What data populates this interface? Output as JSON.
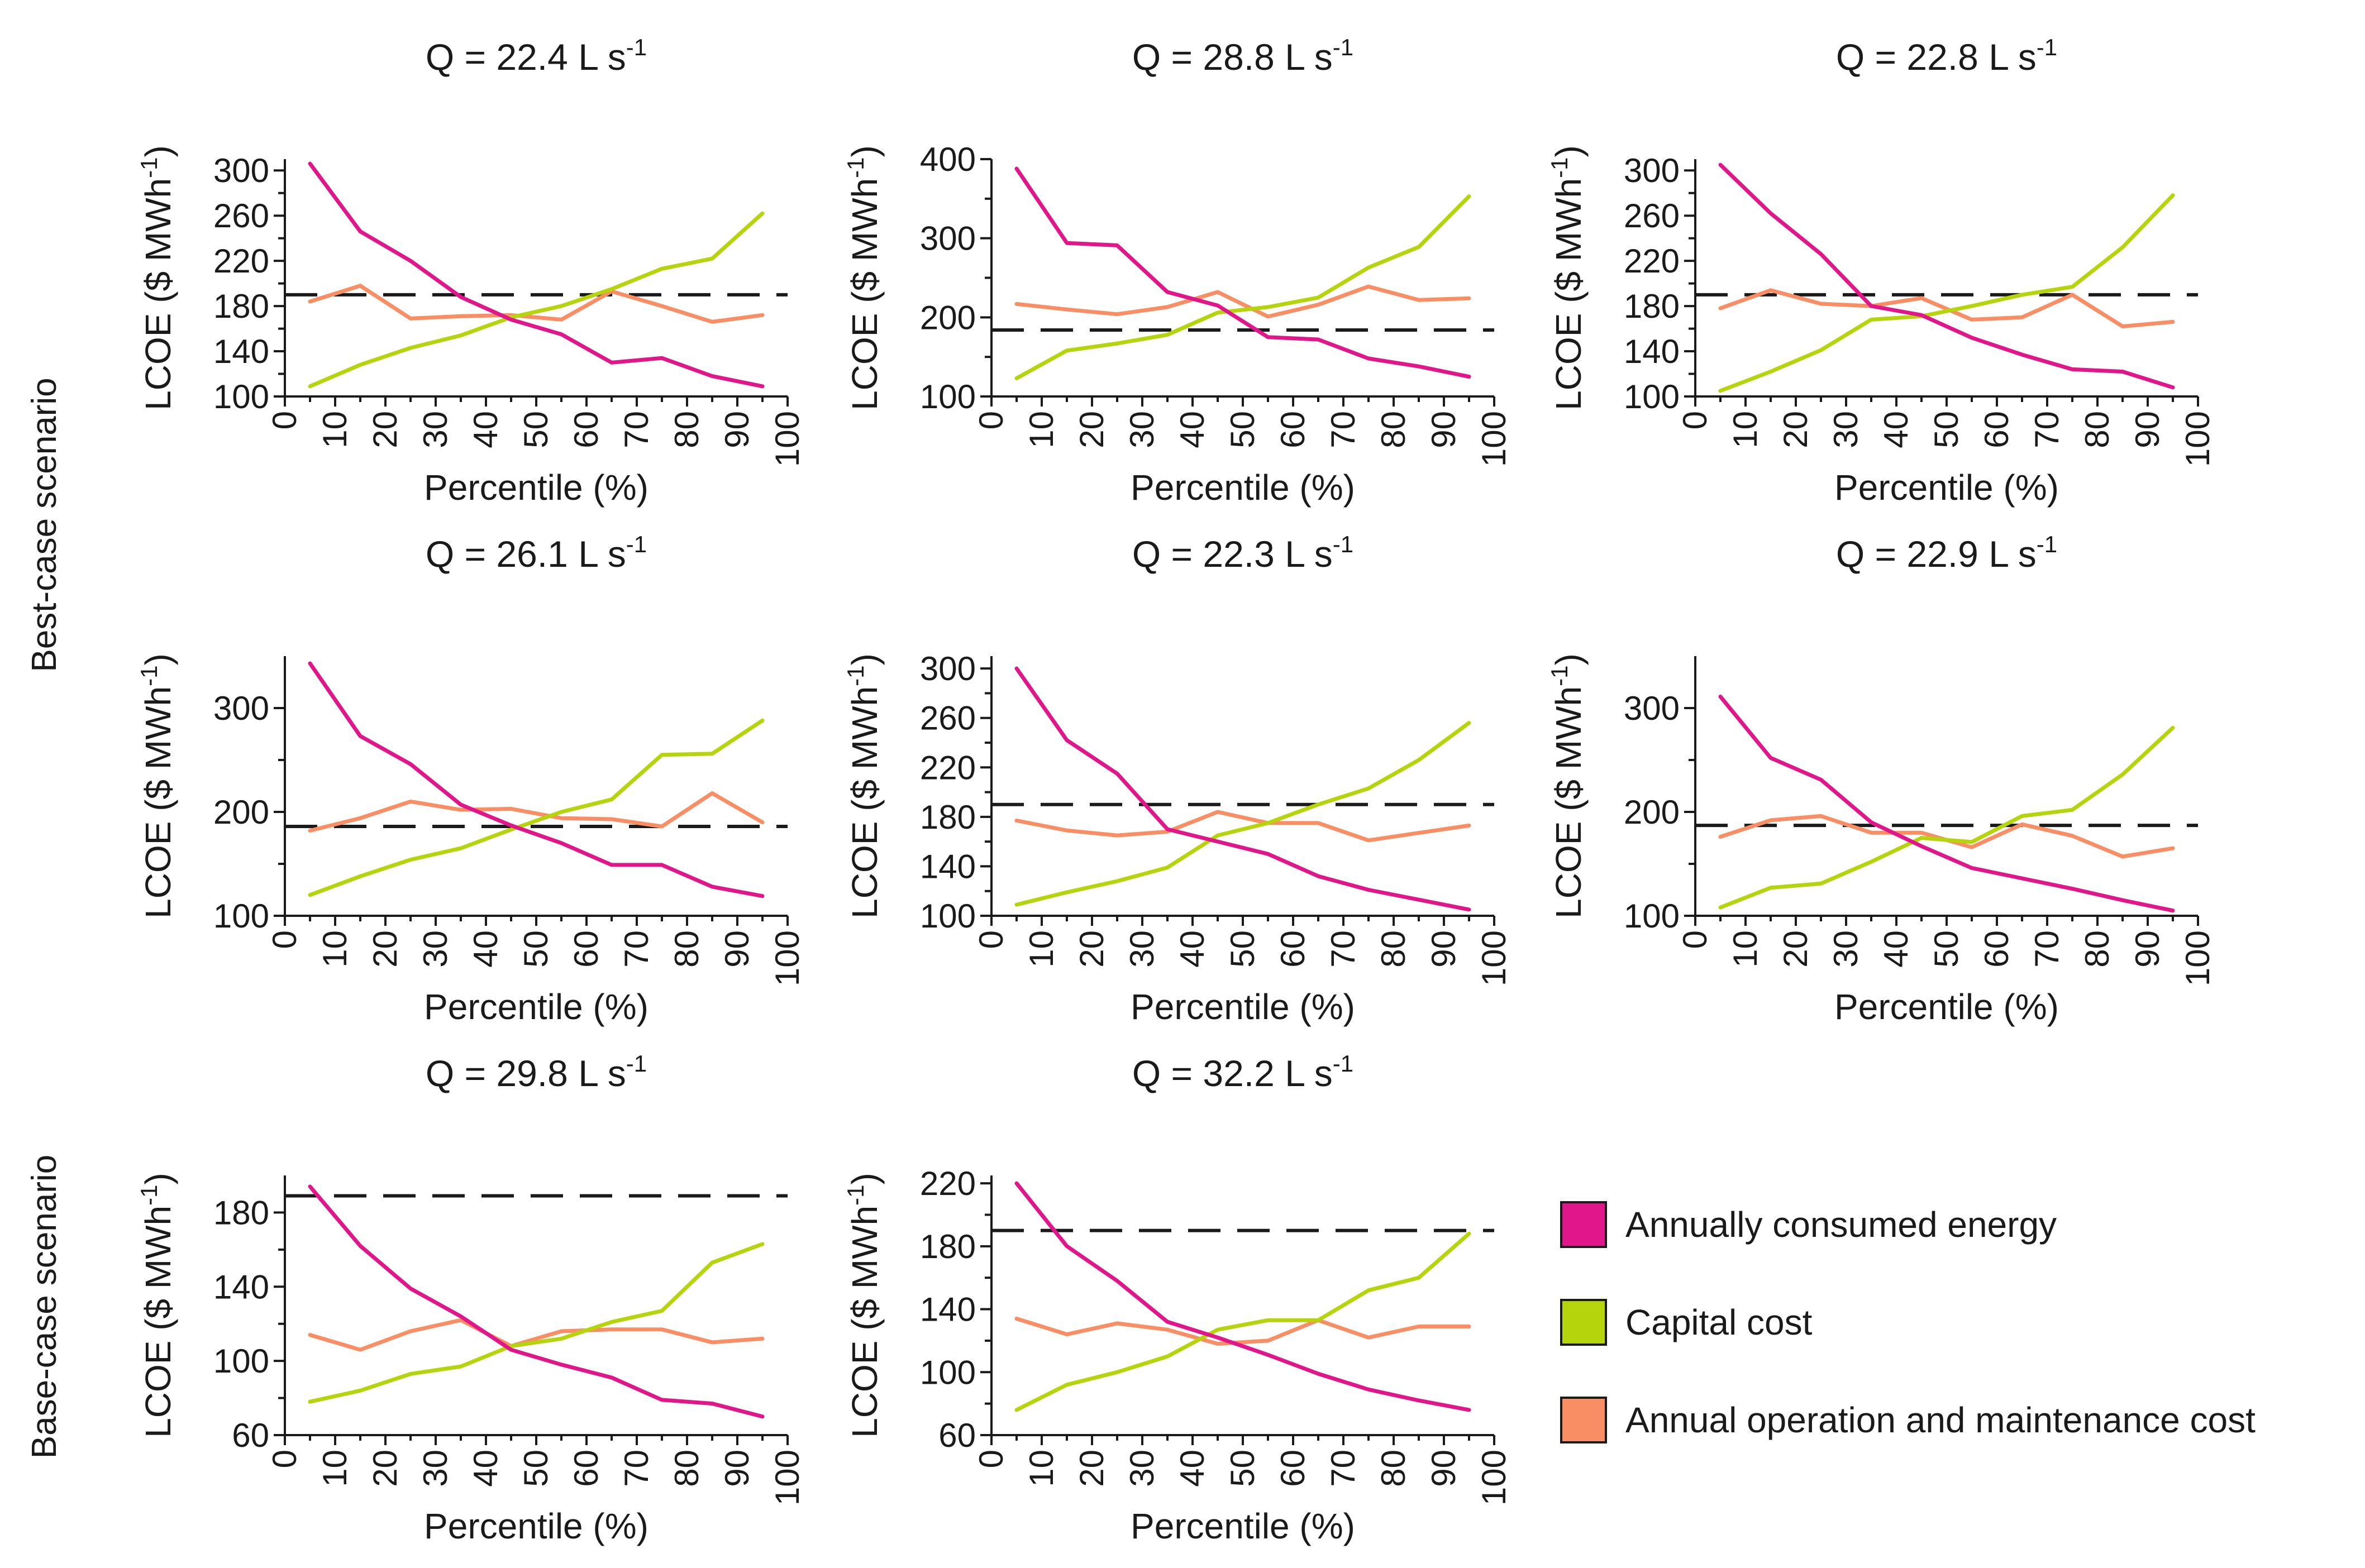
{
  "colors": {
    "energy": "#e0168a",
    "capital": "#b5d40c",
    "om": "#f98d64",
    "reference": "#1a1a1a",
    "axis": "#1a1a1a"
  },
  "scenario_labels": [
    "Best-case scenario",
    "Base-case scenario"
  ],
  "legend": [
    {
      "key": "energy",
      "label": "Annually consumed energy"
    },
    {
      "key": "capital",
      "label": "Capital cost"
    },
    {
      "key": "om",
      "label": "Annual operation and maintenance cost"
    }
  ],
  "chart_data": [
    {
      "type": "line",
      "title_main": "Q = 22.4 L s",
      "title_sup": "-1",
      "xlabel": "Percentile (%)",
      "ylabel_main": "LCOE ($ MWh",
      "ylabel_sup": "-1",
      "ylabel_end": ")",
      "xlim": [
        0,
        100
      ],
      "xticks": [
        0,
        10,
        20,
        30,
        40,
        50,
        60,
        70,
        80,
        90,
        100
      ],
      "ylim": [
        100,
        310
      ],
      "yticks": [
        100,
        140,
        180,
        220,
        260,
        300
      ],
      "x": [
        5,
        15,
        25,
        35,
        45,
        55,
        65,
        75,
        85,
        95
      ],
      "reference": 190,
      "series": [
        {
          "key": "energy",
          "values": [
            306,
            246,
            220,
            188,
            168,
            155,
            130,
            134,
            118,
            109
          ]
        },
        {
          "key": "capital",
          "values": [
            109,
            128,
            143,
            154,
            170,
            180,
            195,
            213,
            222,
            262
          ]
        },
        {
          "key": "om",
          "values": [
            184,
            198,
            169,
            171,
            172,
            168,
            193,
            180,
            166,
            172
          ]
        }
      ]
    },
    {
      "type": "line",
      "title_main": "Q = 28.8 L s",
      "title_sup": "-1",
      "xlabel": "Percentile (%)",
      "ylabel_main": "LCOE ($ MWh",
      "ylabel_sup": "-1",
      "ylabel_end": ")",
      "xlim": [
        0,
        100
      ],
      "xticks": [
        0,
        10,
        20,
        30,
        40,
        50,
        60,
        70,
        80,
        90,
        100
      ],
      "ylim": [
        100,
        400
      ],
      "yticks": [
        100,
        200,
        300,
        400
      ],
      "x": [
        5,
        15,
        25,
        35,
        45,
        55,
        65,
        75,
        85,
        95
      ],
      "reference": 184,
      "series": [
        {
          "key": "energy",
          "values": [
            388,
            294,
            291,
            232,
            215,
            175,
            172,
            148,
            138,
            125
          ]
        },
        {
          "key": "capital",
          "values": [
            123,
            158,
            167,
            178,
            206,
            213,
            225,
            263,
            289,
            353
          ]
        },
        {
          "key": "om",
          "values": [
            217,
            210,
            204,
            213,
            232,
            201,
            216,
            239,
            222,
            224
          ]
        }
      ]
    },
    {
      "type": "line",
      "title_main": "Q = 22.8 L s",
      "title_sup": "-1",
      "xlabel": "Percentile (%)",
      "ylabel_main": "LCOE ($ MWh",
      "ylabel_sup": "-1",
      "ylabel_end": ")",
      "xlim": [
        0,
        100
      ],
      "xticks": [
        0,
        10,
        20,
        30,
        40,
        50,
        60,
        70,
        80,
        90,
        100
      ],
      "ylim": [
        100,
        310
      ],
      "yticks": [
        100,
        140,
        180,
        220,
        260,
        300
      ],
      "x": [
        5,
        15,
        25,
        35,
        45,
        55,
        65,
        75,
        85,
        95
      ],
      "reference": 190,
      "series": [
        {
          "key": "energy",
          "values": [
            305,
            262,
            226,
            180,
            172,
            152,
            137,
            124,
            122,
            108
          ]
        },
        {
          "key": "capital",
          "values": [
            105,
            122,
            141,
            168,
            171,
            180,
            190,
            197,
            232,
            278
          ]
        },
        {
          "key": "om",
          "values": [
            178,
            194,
            182,
            180,
            187,
            168,
            170,
            190,
            162,
            166
          ]
        }
      ]
    },
    {
      "type": "line",
      "title_main": "Q = 26.1 L s",
      "title_sup": "-1",
      "xlabel": "Percentile (%)",
      "ylabel_main": "LCOE ($ MWh",
      "ylabel_sup": "-1",
      "ylabel_end": ")",
      "xlim": [
        0,
        100
      ],
      "xticks": [
        0,
        10,
        20,
        30,
        40,
        50,
        60,
        70,
        80,
        90,
        100
      ],
      "ylim": [
        100,
        350
      ],
      "yticks": [
        100,
        200,
        300
      ],
      "x": [
        5,
        15,
        25,
        35,
        45,
        55,
        65,
        75,
        85,
        95
      ],
      "reference": 186,
      "series": [
        {
          "key": "energy",
          "values": [
            343,
            273,
            246,
            207,
            187,
            170,
            149,
            149,
            128,
            119
          ]
        },
        {
          "key": "capital",
          "values": [
            120,
            138,
            154,
            165,
            183,
            200,
            212,
            255,
            256,
            288
          ]
        },
        {
          "key": "om",
          "values": [
            182,
            194,
            210,
            202,
            203,
            194,
            193,
            186,
            218,
            190
          ]
        }
      ]
    },
    {
      "type": "line",
      "title_main": "Q = 22.3 L s",
      "title_sup": "-1",
      "xlabel": "Percentile (%)",
      "ylabel_main": "LCOE ($ MWh",
      "ylabel_sup": "-1",
      "ylabel_end": ")",
      "xlim": [
        0,
        100
      ],
      "xticks": [
        0,
        10,
        20,
        30,
        40,
        50,
        60,
        70,
        80,
        90,
        100
      ],
      "ylim": [
        100,
        310
      ],
      "yticks": [
        100,
        140,
        180,
        220,
        260,
        300
      ],
      "x": [
        5,
        15,
        25,
        35,
        45,
        55,
        65,
        75,
        85,
        95
      ],
      "reference": 190,
      "series": [
        {
          "key": "energy",
          "values": [
            300,
            242,
            215,
            170,
            160,
            150,
            132,
            121,
            113,
            105
          ]
        },
        {
          "key": "capital",
          "values": [
            109,
            119,
            128,
            139,
            165,
            175,
            190,
            203,
            226,
            256
          ]
        },
        {
          "key": "om",
          "values": [
            177,
            169,
            165,
            168,
            184,
            175,
            175,
            161,
            167,
            173
          ]
        }
      ]
    },
    {
      "type": "line",
      "title_main": "Q = 22.9 L s",
      "title_sup": "-1",
      "xlabel": "Percentile (%)",
      "ylabel_main": "LCOE ($ MWh",
      "ylabel_sup": "-1",
      "ylabel_end": ")",
      "xlim": [
        0,
        100
      ],
      "xticks": [
        0,
        10,
        20,
        30,
        40,
        50,
        60,
        70,
        80,
        90,
        100
      ],
      "ylim": [
        100,
        350
      ],
      "yticks": [
        100,
        200,
        300
      ],
      "x": [
        5,
        15,
        25,
        35,
        45,
        55,
        65,
        75,
        85,
        95
      ],
      "reference": 187,
      "series": [
        {
          "key": "energy",
          "values": [
            311,
            252,
            231,
            190,
            167,
            146,
            136,
            126,
            115,
            105
          ]
        },
        {
          "key": "capital",
          "values": [
            108,
            127,
            131,
            152,
            175,
            171,
            196,
            202,
            236,
            281
          ]
        },
        {
          "key": "om",
          "values": [
            176,
            192,
            196,
            180,
            180,
            166,
            188,
            177,
            157,
            165
          ]
        }
      ]
    },
    {
      "type": "line",
      "title_main": "Q = 29.8 L s",
      "title_sup": "-1",
      "xlabel": "Percentile (%)",
      "ylabel_main": "LCOE ($ MWh",
      "ylabel_sup": "-1",
      "ylabel_end": ")",
      "xlim": [
        0,
        100
      ],
      "xticks": [
        0,
        10,
        20,
        30,
        40,
        50,
        60,
        70,
        80,
        90,
        100
      ],
      "ylim": [
        60,
        200
      ],
      "yticks": [
        60,
        100,
        140,
        180
      ],
      "x": [
        5,
        15,
        25,
        35,
        45,
        55,
        65,
        75,
        85,
        95
      ],
      "reference": 189,
      "series": [
        {
          "key": "energy",
          "values": [
            194,
            162,
            139,
            124,
            106,
            98,
            91,
            79,
            77,
            70
          ]
        },
        {
          "key": "capital",
          "values": [
            78,
            84,
            93,
            97,
            108,
            112,
            121,
            127,
            153,
            163
          ]
        },
        {
          "key": "om",
          "values": [
            114,
            106,
            116,
            122,
            108,
            116,
            117,
            117,
            110,
            112
          ]
        }
      ]
    },
    {
      "type": "line",
      "title_main": "Q = 32.2 L s",
      "title_sup": "-1",
      "xlabel": "Percentile (%)",
      "ylabel_main": "LCOE ($ MWh",
      "ylabel_sup": "-1",
      "ylabel_end": ")",
      "xlim": [
        0,
        100
      ],
      "xticks": [
        0,
        10,
        20,
        30,
        40,
        50,
        60,
        70,
        80,
        90,
        100
      ],
      "ylim": [
        60,
        225
      ],
      "yticks": [
        60,
        100,
        140,
        180,
        220
      ],
      "x": [
        5,
        15,
        25,
        35,
        45,
        55,
        65,
        75,
        85,
        95
      ],
      "reference": 190,
      "series": [
        {
          "key": "energy",
          "values": [
            220,
            180,
            158,
            132,
            122,
            111,
            99,
            89,
            82,
            76
          ]
        },
        {
          "key": "capital",
          "values": [
            76,
            92,
            100,
            110,
            127,
            133,
            133,
            152,
            160,
            188
          ]
        },
        {
          "key": "om",
          "values": [
            134,
            124,
            131,
            127,
            118,
            120,
            133,
            122,
            129,
            129
          ]
        }
      ]
    }
  ]
}
